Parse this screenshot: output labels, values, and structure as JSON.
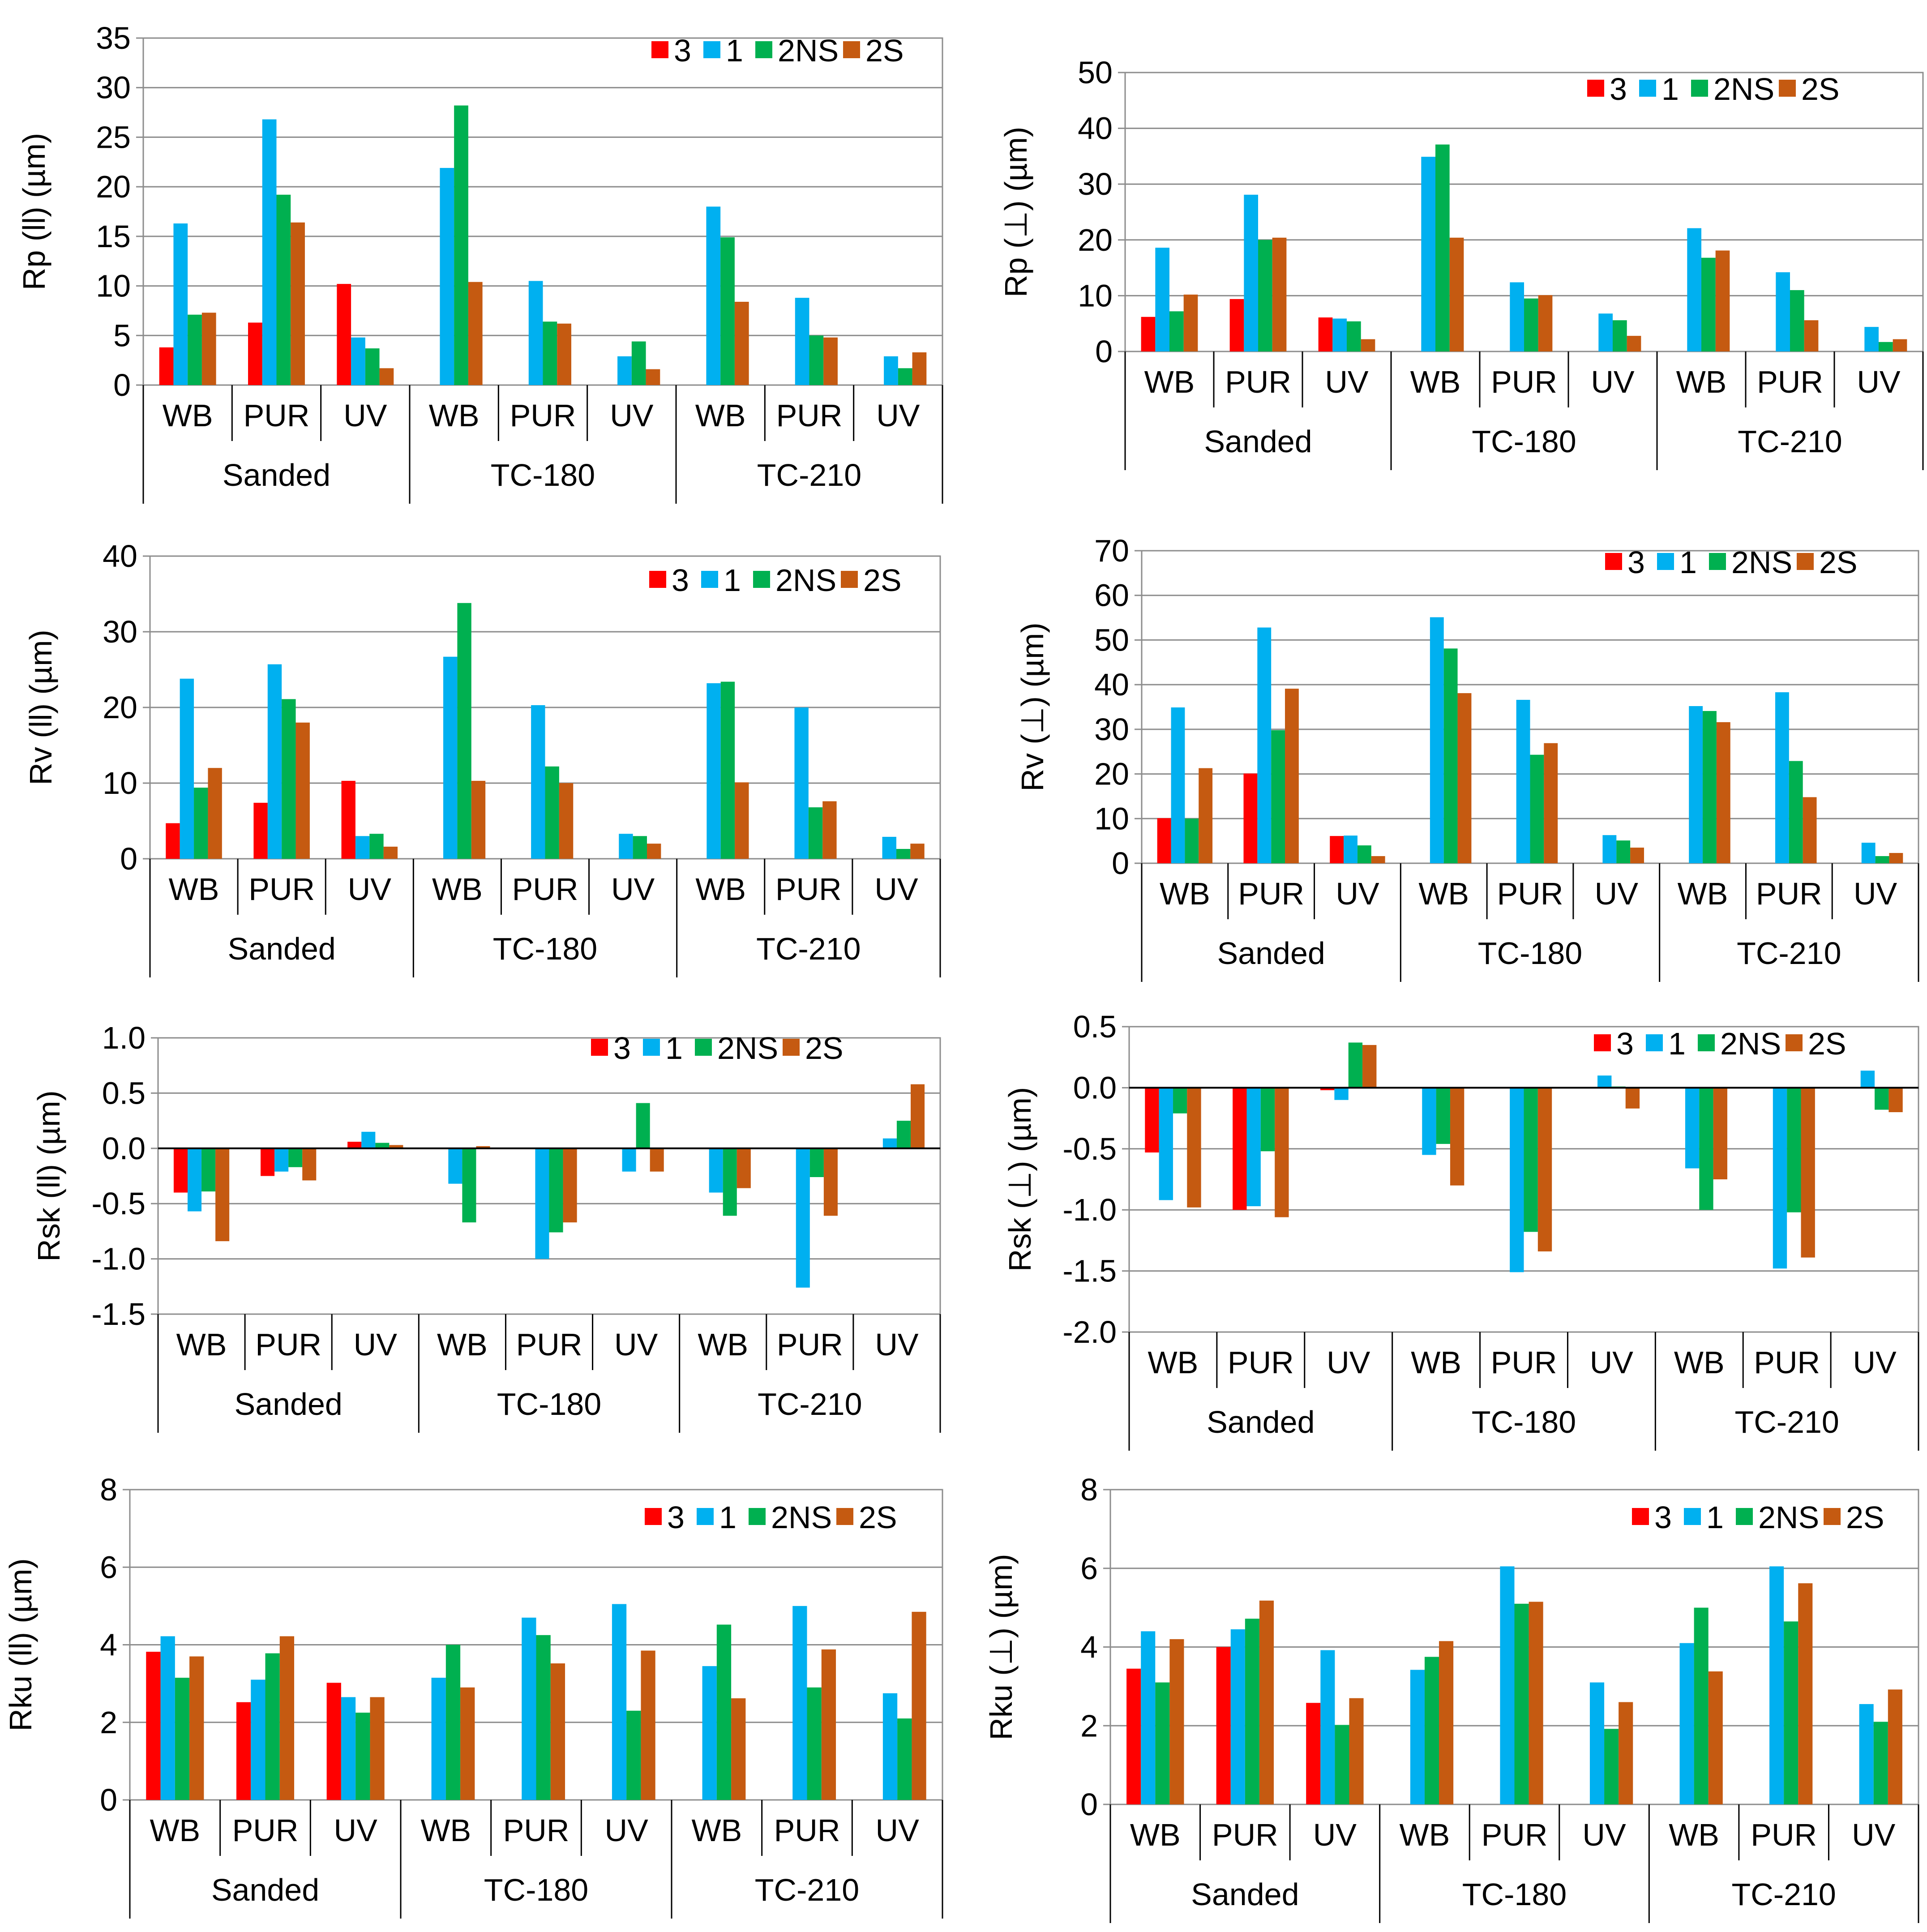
{
  "groups": [
    "Sanded",
    "TC-180",
    "TC-210"
  ],
  "coatings": [
    "WB",
    "PUR",
    "UV"
  ],
  "series": [
    {
      "name": "3",
      "color": "#FF0000"
    },
    {
      "name": "1",
      "color": "#00B0F0"
    },
    {
      "name": "2NS",
      "color": "#00B050"
    },
    {
      "name": "2S",
      "color": "#C55A11"
    }
  ],
  "chart_data": [
    {
      "type": "bar",
      "ylabel": "Rp (ll) (µm)",
      "ylim": [
        0,
        35
      ],
      "ytick_step": 5,
      "tick_decimals": 0,
      "categories": [
        "WB",
        "PUR",
        "UV",
        "WB",
        "PUR",
        "UV",
        "WB",
        "PUR",
        "UV"
      ],
      "series": [
        {
          "name": "3",
          "values": [
            3.8,
            6.3,
            10.2,
            null,
            null,
            null,
            null,
            null,
            null
          ]
        },
        {
          "name": "1",
          "values": [
            16.3,
            26.8,
            4.8,
            21.9,
            10.5,
            2.9,
            18.0,
            8.8,
            2.9
          ]
        },
        {
          "name": "2NS",
          "values": [
            7.1,
            19.2,
            3.7,
            28.2,
            6.4,
            4.4,
            14.9,
            5.0,
            1.7
          ]
        },
        {
          "name": "2S",
          "values": [
            7.3,
            16.4,
            1.7,
            10.4,
            6.2,
            1.6,
            8.4,
            4.8,
            3.3
          ]
        }
      ]
    },
    {
      "type": "bar",
      "ylabel": "Rp (⊥) (µm)",
      "ylim": [
        0,
        50
      ],
      "ytick_step": 10,
      "tick_decimals": 0,
      "categories": [
        "WB",
        "PUR",
        "UV",
        "WB",
        "PUR",
        "UV",
        "WB",
        "PUR",
        "UV"
      ],
      "series": [
        {
          "name": "3",
          "values": [
            6.2,
            9.4,
            6.1,
            null,
            null,
            null,
            null,
            null,
            null
          ]
        },
        {
          "name": "1",
          "values": [
            18.6,
            28.1,
            5.9,
            34.9,
            12.4,
            6.8,
            22.1,
            14.2,
            4.4
          ]
        },
        {
          "name": "2NS",
          "values": [
            7.2,
            20.0,
            5.4,
            37.1,
            9.5,
            5.6,
            16.8,
            11.0,
            1.7
          ]
        },
        {
          "name": "2S",
          "values": [
            10.2,
            20.4,
            2.2,
            20.4,
            10.1,
            2.8,
            18.1,
            5.6,
            2.2
          ]
        }
      ]
    },
    {
      "type": "bar",
      "ylabel": "Rv (ll) (µm)",
      "ylim": [
        0,
        40
      ],
      "ytick_step": 10,
      "tick_decimals": 0,
      "categories": [
        "WB",
        "PUR",
        "UV",
        "WB",
        "PUR",
        "UV",
        "WB",
        "PUR",
        "UV"
      ],
      "series": [
        {
          "name": "3",
          "values": [
            4.7,
            7.4,
            10.3,
            null,
            null,
            null,
            null,
            null,
            null
          ]
        },
        {
          "name": "1",
          "values": [
            23.8,
            25.7,
            3.0,
            26.7,
            20.3,
            3.3,
            23.2,
            20.0,
            2.9
          ]
        },
        {
          "name": "2NS",
          "values": [
            9.4,
            21.1,
            3.3,
            33.8,
            12.2,
            3.0,
            23.4,
            6.8,
            1.3
          ]
        },
        {
          "name": "2S",
          "values": [
            12.0,
            18.0,
            1.6,
            10.3,
            10.0,
            2.0,
            10.1,
            7.6,
            2.0
          ]
        }
      ]
    },
    {
      "type": "bar",
      "ylabel": "Rv (⊥) (µm)",
      "ylim": [
        0,
        70
      ],
      "ytick_step": 10,
      "tick_decimals": 0,
      "categories": [
        "WB",
        "PUR",
        "UV",
        "WB",
        "PUR",
        "UV",
        "WB",
        "PUR",
        "UV"
      ],
      "series": [
        {
          "name": "3",
          "values": [
            10.1,
            20.1,
            6.1,
            null,
            null,
            null,
            null,
            null,
            null
          ]
        },
        {
          "name": "1",
          "values": [
            34.9,
            52.8,
            6.2,
            55.1,
            36.6,
            6.3,
            35.2,
            38.3,
            4.6
          ]
        },
        {
          "name": "2NS",
          "values": [
            10.0,
            29.8,
            4.0,
            48.1,
            24.3,
            5.1,
            34.1,
            22.9,
            1.6
          ]
        },
        {
          "name": "2S",
          "values": [
            21.3,
            39.1,
            1.6,
            38.1,
            26.9,
            3.5,
            31.6,
            14.8,
            2.3
          ]
        }
      ]
    },
    {
      "type": "bar",
      "ylabel": "Rsk (ll) (µm)",
      "ylim": [
        -1.5,
        1.0
      ],
      "ytick_step": 0.5,
      "tick_decimals": 1,
      "categories": [
        "WB",
        "PUR",
        "UV",
        "WB",
        "PUR",
        "UV",
        "WB",
        "PUR",
        "UV"
      ],
      "series": [
        {
          "name": "3",
          "values": [
            -0.4,
            -0.25,
            0.06,
            null,
            null,
            null,
            null,
            null,
            null
          ]
        },
        {
          "name": "1",
          "values": [
            -0.57,
            -0.21,
            0.15,
            -0.32,
            -1.0,
            -0.21,
            -0.4,
            -1.26,
            0.09
          ]
        },
        {
          "name": "2NS",
          "values": [
            -0.39,
            -0.17,
            0.05,
            -0.67,
            -0.76,
            0.41,
            -0.61,
            -0.26,
            0.25
          ]
        },
        {
          "name": "2S",
          "values": [
            -0.84,
            -0.29,
            0.03,
            0.02,
            -0.67,
            -0.21,
            -0.36,
            -0.61,
            0.58
          ]
        }
      ]
    },
    {
      "type": "bar",
      "ylabel": "Rsk (⊥) (µm)",
      "ylim": [
        -2.0,
        0.5
      ],
      "ytick_step": 0.5,
      "tick_decimals": 1,
      "categories": [
        "WB",
        "PUR",
        "UV",
        "WB",
        "PUR",
        "UV",
        "WB",
        "PUR",
        "UV"
      ],
      "series": [
        {
          "name": "3",
          "values": [
            -0.53,
            -1.0,
            -0.02,
            null,
            null,
            null,
            null,
            null,
            null
          ]
        },
        {
          "name": "1",
          "values": [
            -0.92,
            -0.97,
            -0.1,
            -0.55,
            -1.51,
            0.1,
            -0.66,
            -1.48,
            0.14
          ]
        },
        {
          "name": "2NS",
          "values": [
            -0.21,
            -0.52,
            0.37,
            -0.46,
            -1.18,
            0.01,
            -1.0,
            -1.02,
            -0.18
          ]
        },
        {
          "name": "2S",
          "values": [
            -0.98,
            -1.06,
            0.35,
            -0.8,
            -1.34,
            -0.17,
            -0.75,
            -1.39,
            -0.2
          ]
        }
      ]
    },
    {
      "type": "bar",
      "ylabel": "Rku (ll) (µm)",
      "ylim": [
        0,
        8
      ],
      "ytick_step": 2,
      "tick_decimals": 0,
      "categories": [
        "WB",
        "PUR",
        "UV",
        "WB",
        "PUR",
        "UV",
        "WB",
        "PUR",
        "UV"
      ],
      "series": [
        {
          "name": "3",
          "values": [
            3.82,
            2.52,
            3.02,
            null,
            null,
            null,
            null,
            null,
            null
          ]
        },
        {
          "name": "1",
          "values": [
            4.22,
            3.1,
            2.65,
            3.15,
            4.7,
            5.05,
            3.45,
            5.0,
            2.75
          ]
        },
        {
          "name": "2NS",
          "values": [
            3.15,
            3.78,
            2.25,
            4.0,
            4.25,
            2.3,
            4.52,
            2.9,
            2.1
          ]
        },
        {
          "name": "2S",
          "values": [
            3.7,
            4.22,
            2.65,
            2.9,
            3.52,
            3.85,
            2.62,
            3.88,
            4.85
          ]
        }
      ]
    },
    {
      "type": "bar",
      "ylabel": "Rku (⊥) (µm)",
      "ylim": [
        0,
        8
      ],
      "ytick_step": 2,
      "tick_decimals": 0,
      "categories": [
        "WB",
        "PUR",
        "UV",
        "WB",
        "PUR",
        "UV",
        "WB",
        "PUR",
        "UV"
      ],
      "series": [
        {
          "name": "3",
          "values": [
            3.45,
            4.0,
            2.58,
            null,
            null,
            null,
            null,
            null,
            null
          ]
        },
        {
          "name": "1",
          "values": [
            4.4,
            4.45,
            3.92,
            3.42,
            6.05,
            3.1,
            4.1,
            6.05,
            2.55
          ]
        },
        {
          "name": "2NS",
          "values": [
            3.1,
            4.72,
            2.02,
            3.75,
            5.1,
            1.92,
            5.0,
            4.65,
            2.1
          ]
        },
        {
          "name": "2S",
          "values": [
            4.2,
            5.18,
            2.7,
            4.15,
            5.15,
            2.6,
            3.38,
            5.62,
            2.92
          ]
        }
      ]
    }
  ]
}
